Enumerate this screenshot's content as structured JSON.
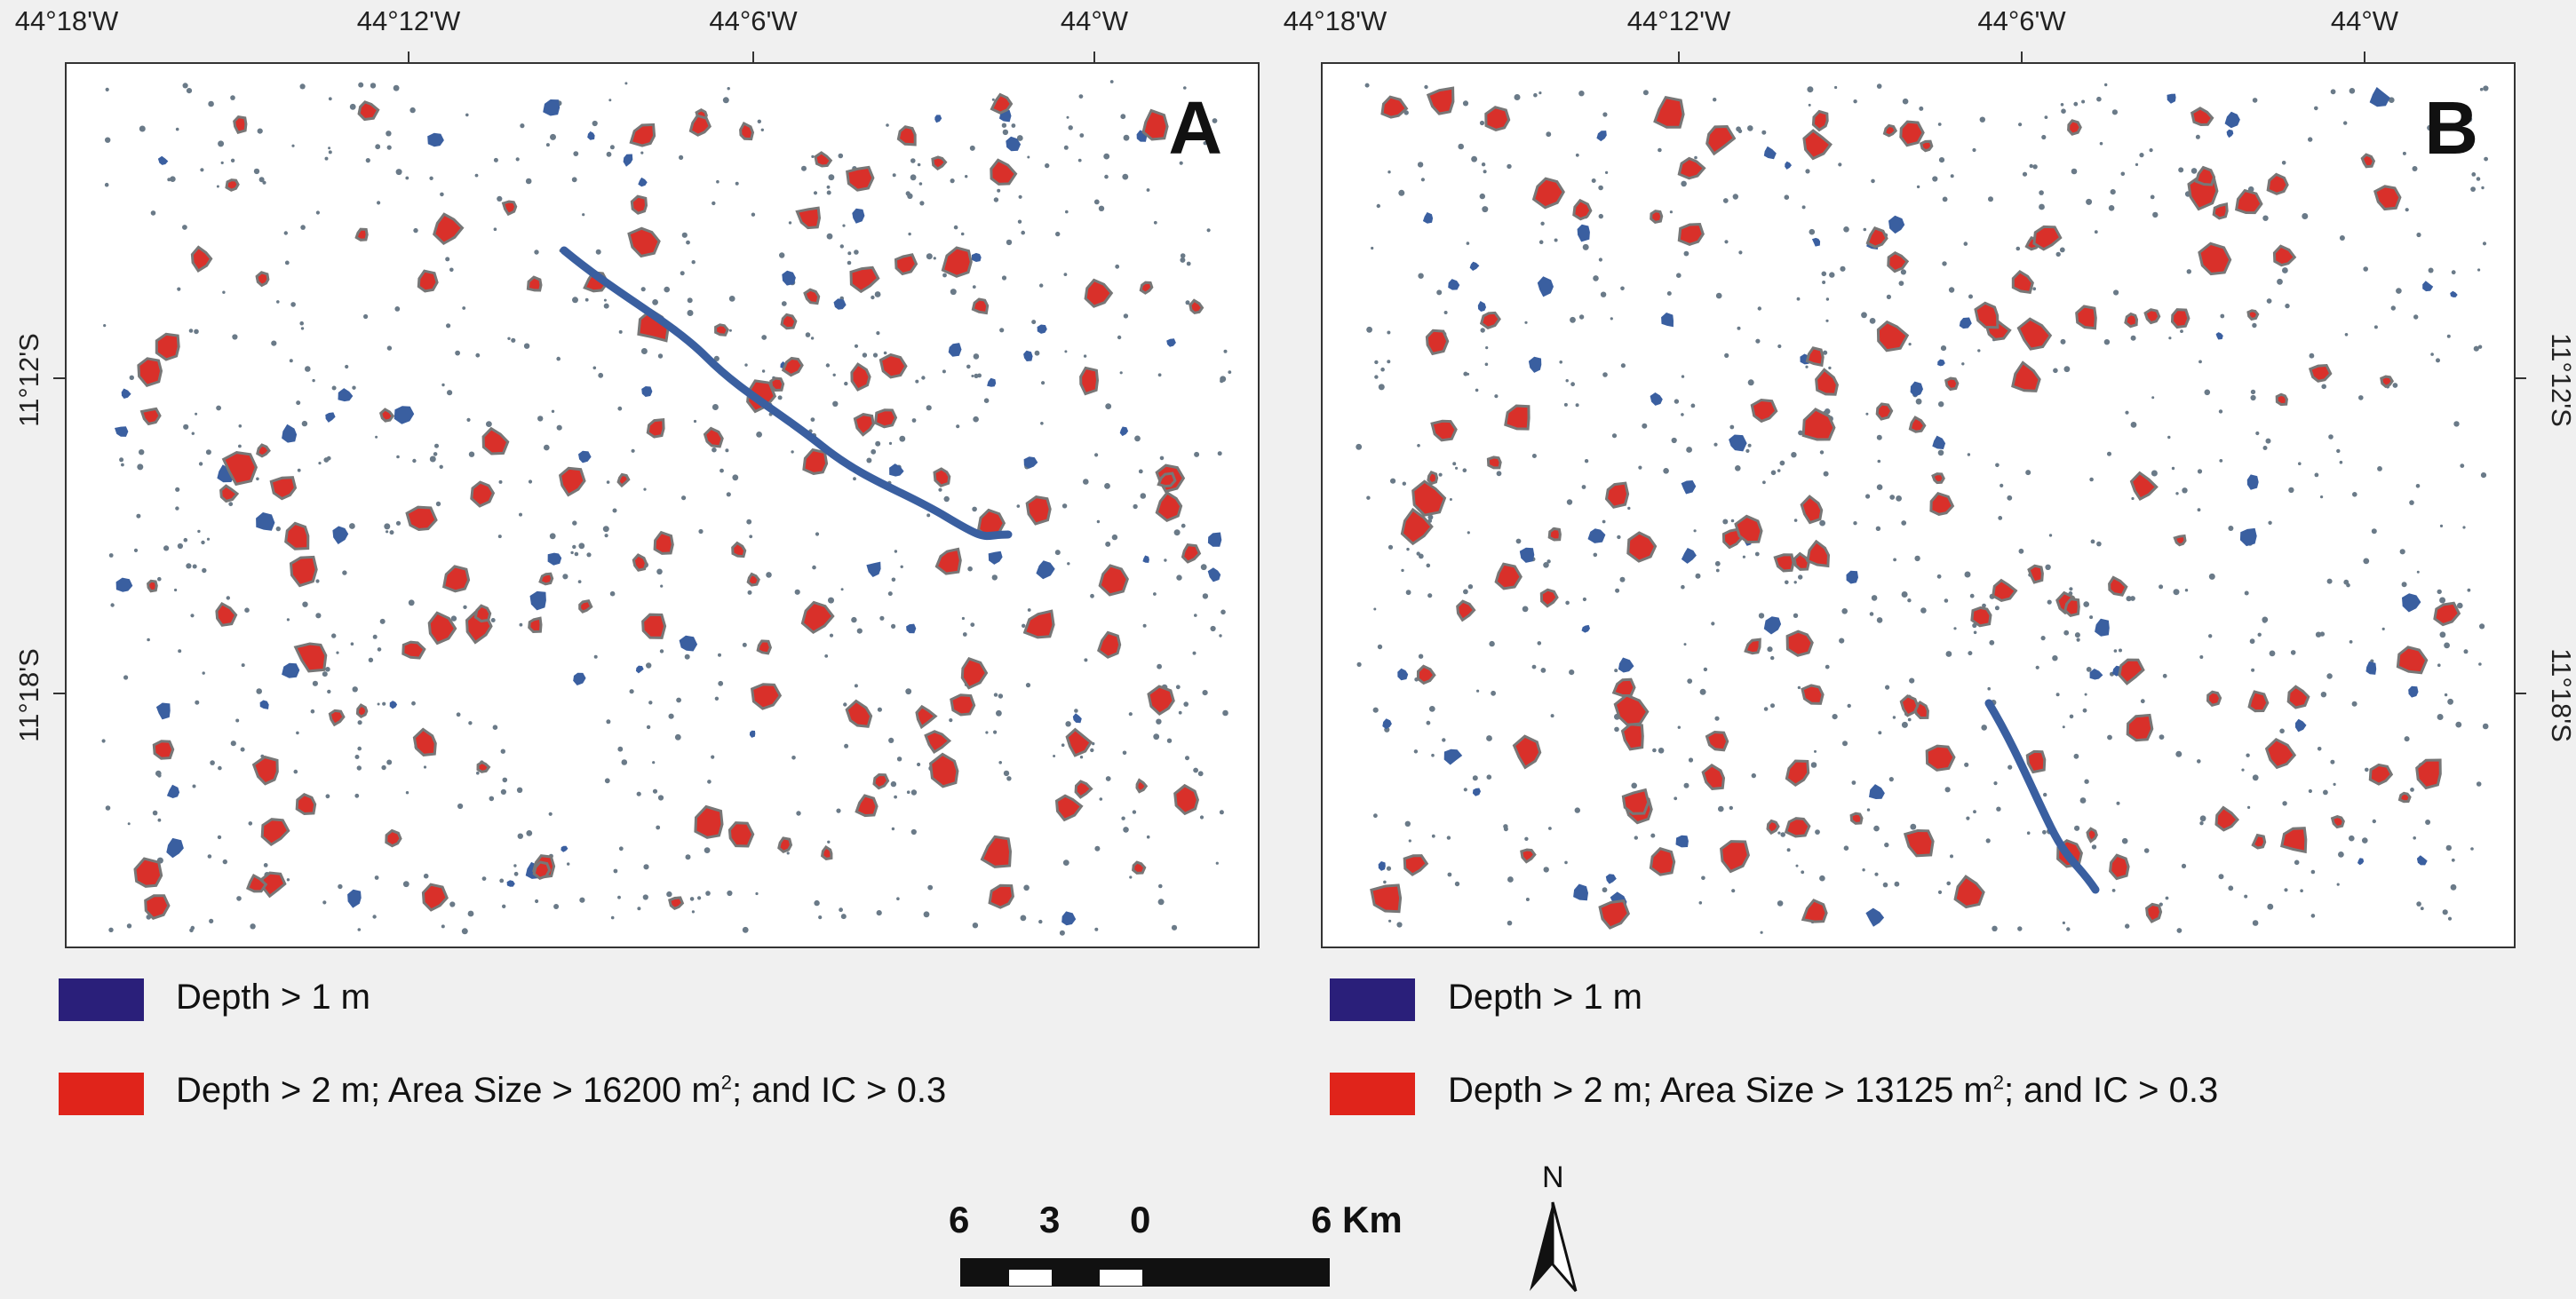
{
  "top_labels": [
    "44°18'W",
    "44°12'W",
    "44°6'W",
    "44°W"
  ],
  "side_labels": [
    "11°12'S",
    "11°18'S"
  ],
  "panels": [
    {
      "letter": "A"
    },
    {
      "letter": "B"
    }
  ],
  "legend": {
    "blue": {
      "color": "#2a1f7a",
      "label": "Depth > 1 m"
    },
    "red": {
      "color": "#e0241b"
    },
    "panel_a_red": {
      "prefix": "Depth > 2 m; Area Size > 16200 m",
      "sup": "2",
      "suffix": "; and  IC > 0.3"
    },
    "panel_b_red": {
      "prefix": "Depth > 2 m; Area Size > 13125 m",
      "sup": "2",
      "suffix": "; and  IC > 0.3"
    }
  },
  "scale_bar": {
    "labels": [
      "6",
      "3",
      "0",
      "6 Km"
    ]
  },
  "north_arrow": {
    "label": "N"
  },
  "colors": {
    "water_blue": "#3a5fa0",
    "pond_red": "#d9302a",
    "pond_outline": "#777777",
    "dots": "#6a7a88"
  }
}
